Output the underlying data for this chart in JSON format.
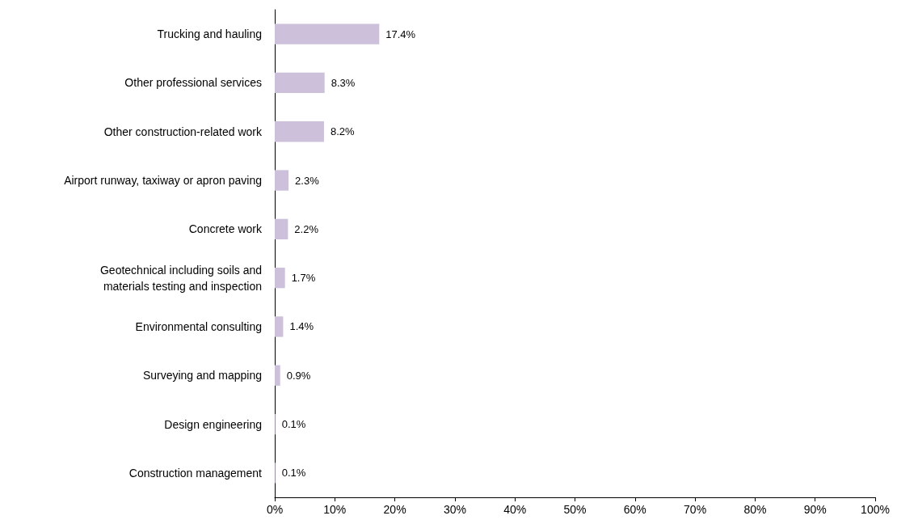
{
  "chart_data": {
    "type": "bar",
    "orientation": "horizontal",
    "categories": [
      "Trucking and hauling",
      "Other professional services",
      "Other construction-related work",
      "Airport runway, taxiway or apron paving",
      "Concrete work",
      "Geotechnical including soils and\nmaterials testing and inspection",
      "Environmental consulting",
      "Surveying and mapping",
      "Design engineering",
      "Construction management"
    ],
    "values": [
      17.4,
      8.3,
      8.2,
      2.3,
      2.2,
      1.7,
      1.4,
      0.9,
      0.1,
      0.1
    ],
    "value_labels": [
      "17.4%",
      "8.3%",
      "8.2%",
      "2.3%",
      "2.2%",
      "1.7%",
      "1.4%",
      "0.9%",
      "0.1%",
      "0.1%"
    ],
    "color": "#ccc0da",
    "xlim": [
      0,
      100
    ],
    "xticks": [
      {
        "value": 0,
        "label": "0%"
      },
      {
        "value": 10,
        "label": "10%"
      },
      {
        "value": 20,
        "label": "20%"
      },
      {
        "value": 30,
        "label": "30%"
      },
      {
        "value": 40,
        "label": "40%"
      },
      {
        "value": 50,
        "label": "50%"
      },
      {
        "value": 60,
        "label": "60%"
      },
      {
        "value": 70,
        "label": "70%"
      },
      {
        "value": 80,
        "label": "80%"
      },
      {
        "value": 90,
        "label": "90%"
      },
      {
        "value": 100,
        "label": "100%"
      }
    ],
    "grid": false
  }
}
